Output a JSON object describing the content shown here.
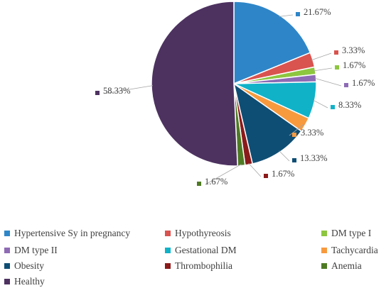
{
  "chart_data": {
    "type": "pie",
    "title": "",
    "slices": [
      {
        "name": "Hypertensive Sy in pregnancy",
        "value": 21.67,
        "label": "21.67%",
        "color": "#2E86C8"
      },
      {
        "name": "Hypothyreosis",
        "value": 3.33,
        "label": "3.33%",
        "color": "#D9534F"
      },
      {
        "name": "DM type I",
        "value": 1.67,
        "label": "1.67%",
        "color": "#8DC63F"
      },
      {
        "name": "DM type II",
        "value": 1.67,
        "label": "1.67%",
        "color": "#8E6BB5"
      },
      {
        "name": "Gestational DM",
        "value": 8.33,
        "label": "8.33%",
        "color": "#10B2C8"
      },
      {
        "name": "Tachycardia",
        "value": 3.33,
        "label": "3.33%",
        "color": "#F79A3E"
      },
      {
        "name": "Obesity",
        "value": 13.33,
        "label": "13.33%",
        "color": "#0F4E74"
      },
      {
        "name": "Thrombophilia",
        "value": 1.67,
        "label": "1.67%",
        "color": "#8B1A1A"
      },
      {
        "name": "Anemia",
        "value": 1.67,
        "label": "1.67%",
        "color": "#4E7A24"
      },
      {
        "name": "Healthy",
        "value": 58.33,
        "label": "58.33%",
        "color": "#4D3260"
      }
    ],
    "legend_position": "bottom"
  }
}
